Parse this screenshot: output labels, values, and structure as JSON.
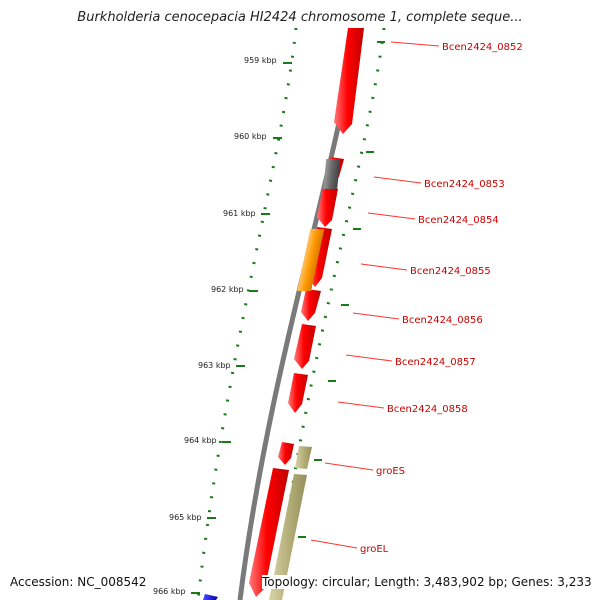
{
  "title": "Burkholderia cenocepacia HI2424 chromosome 1, complete seque...",
  "footer": {
    "accession": "Accession: NC_008542",
    "summary": "Topology: circular; Length: 3,483,902 bp; Genes: 3,233"
  },
  "colors": {
    "backbone": "#808080",
    "ruler": "#1a7a1a",
    "label_line": "#ff0000",
    "label_text": "#cc0000",
    "gene_red": "#ff0000",
    "gene_gray": "#666666",
    "gene_orange": "#ff9900",
    "gene_khaki": "#b5b07a",
    "gene_blue": "#0000cc"
  },
  "ruler_ticks": [
    {
      "label": "959 kbp"
    },
    {
      "label": "960 kbp"
    },
    {
      "label": "961 kbp"
    },
    {
      "label": "962 kbp"
    },
    {
      "label": "963 kbp"
    },
    {
      "label": "964 kbp"
    },
    {
      "label": "965 kbp"
    },
    {
      "label": "966 kbp"
    }
  ],
  "gene_labels": [
    {
      "text": "Bcen2424_0852"
    },
    {
      "text": "Bcen2424_0853"
    },
    {
      "text": "Bcen2424_0854"
    },
    {
      "text": "Bcen2424_0855"
    },
    {
      "text": "Bcen2424_0856"
    },
    {
      "text": "Bcen2424_0857"
    },
    {
      "text": "Bcen2424_0858"
    },
    {
      "text": "groES"
    },
    {
      "text": "groEL"
    }
  ]
}
